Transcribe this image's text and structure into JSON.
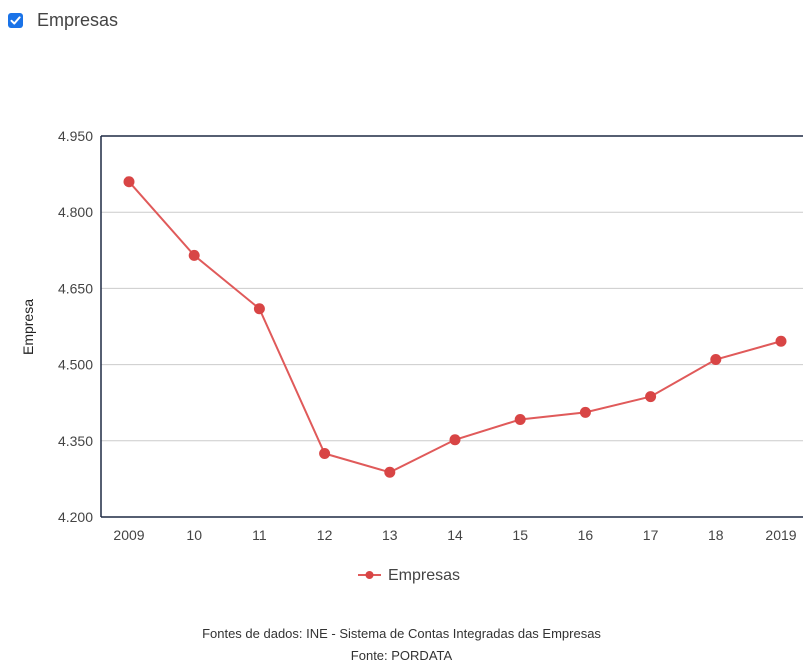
{
  "toggle": {
    "label": "Empresas",
    "checked": true,
    "color": "#1a73e8"
  },
  "chart_data": {
    "type": "line",
    "title": "",
    "xlabel": "",
    "ylabel": "Empresa",
    "categories": [
      "2009",
      "10",
      "11",
      "12",
      "13",
      "14",
      "15",
      "16",
      "17",
      "18",
      "2019"
    ],
    "series": [
      {
        "name": "Empresas",
        "color": "#e05a5a",
        "marker_color": "#d84545",
        "values": [
          4860,
          4715,
          4610,
          4325,
          4288,
          4352,
          4392,
          4406,
          4437,
          4510,
          4546
        ]
      }
    ],
    "ylim": [
      4200,
      4950
    ],
    "yticks": [
      4200,
      4350,
      4500,
      4650,
      4800,
      4950
    ],
    "ytick_labels": [
      "4.200",
      "4.350",
      "4.500",
      "4.650",
      "4.800",
      "4.950"
    ],
    "grid": true,
    "legend": "bottom-center"
  },
  "footer": {
    "sources": "Fontes de dados: INE - Sistema de Contas Integradas das Empresas",
    "source": "Fonte: PORDATA"
  }
}
